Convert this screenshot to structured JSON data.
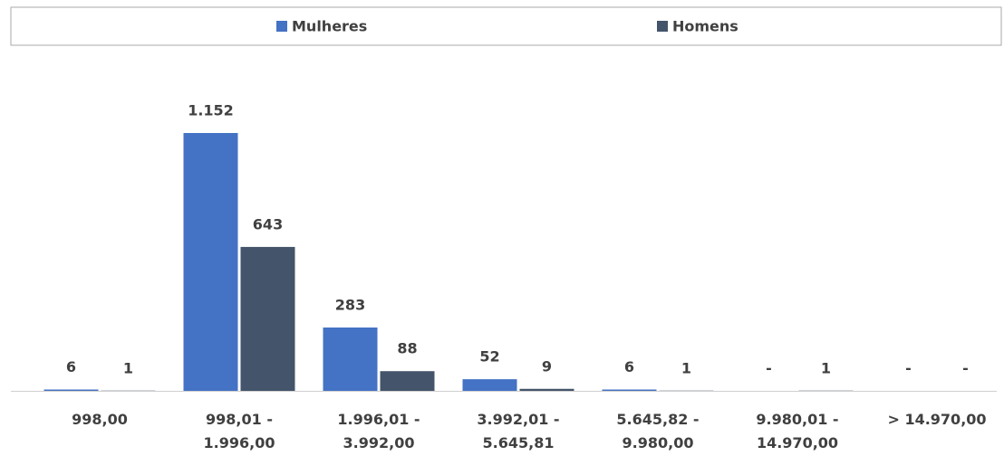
{
  "chart_data": {
    "type": "bar",
    "categories": [
      "998,00",
      "998,01 - 1.996,00",
      "1.996,01 - 3.992,00",
      "3.992,01 - 5.645,81",
      "5.645,82 - 9.980,00",
      "9.980,01 - 14.970,00",
      "> 14.970,00"
    ],
    "series": [
      {
        "name": "Mulheres",
        "color": "#4472c4",
        "values": [
          6,
          1152,
          283,
          52,
          6,
          0,
          0
        ],
        "value_labels": [
          "6",
          "1.152",
          "283",
          "52",
          "6",
          "-",
          "-"
        ]
      },
      {
        "name": "Homens",
        "color": "#44546a",
        "values": [
          1,
          643,
          88,
          9,
          1,
          1,
          0
        ],
        "value_labels": [
          "1",
          "643",
          "88",
          "9",
          "1",
          "1",
          "-"
        ]
      }
    ],
    "legend": "top"
  }
}
